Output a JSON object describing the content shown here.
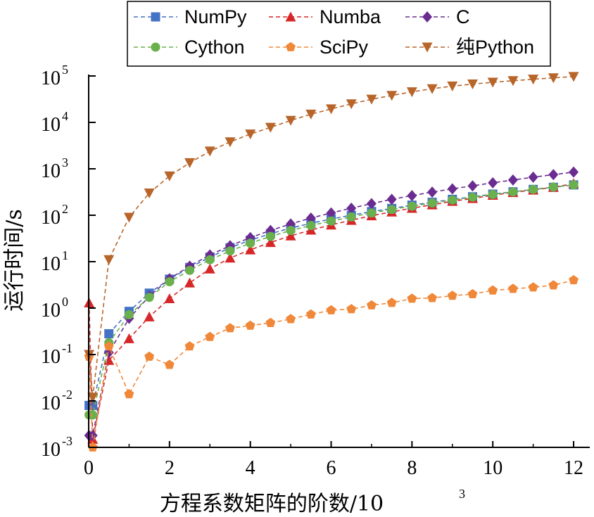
{
  "chart_data": {
    "type": "line",
    "title": "",
    "xlabel": "方程系数矩阵的阶数/10",
    "xlabel_exponent": "3",
    "ylabel": "运行时间/s",
    "xlim": [
      0,
      12.4
    ],
    "ylim_log10": [
      -3,
      5
    ],
    "x_ticks": [
      0,
      2,
      4,
      6,
      8,
      10,
      12
    ],
    "x_tick_labels": [
      "0",
      "2",
      "4",
      "6",
      "8",
      "10",
      "12"
    ],
    "y_ticks_base": "10",
    "y_ticks_exponents": [
      "-3",
      "-2",
      "-1",
      "0",
      "1",
      "2",
      "3",
      "4",
      "5"
    ],
    "legend_position": "top-right",
    "x": [
      0.01,
      0.1,
      0.5,
      1.0,
      1.5,
      2.0,
      2.5,
      3.0,
      3.5,
      4.0,
      4.5,
      5.0,
      5.5,
      6.0,
      6.5,
      7.0,
      7.5,
      8.0,
      8.5,
      9.0,
      9.5,
      10.0,
      10.5,
      11.0,
      11.5,
      12.0
    ],
    "series": [
      {
        "name": "NumPy",
        "color": "#4472c4",
        "marker": "square",
        "values": [
          0.008,
          0.008,
          0.28,
          0.85,
          2.1,
          4.2,
          7.5,
          12.5,
          20,
          29,
          40,
          53,
          67,
          83,
          100,
          120,
          140,
          165,
          190,
          220,
          250,
          285,
          320,
          360,
          400,
          450
        ]
      },
      {
        "name": "Numba",
        "color": "#d62728",
        "marker": "triangle-up",
        "values": [
          1.3,
          0.0015,
          0.075,
          0.22,
          0.65,
          1.6,
          3.5,
          7,
          12,
          18,
          26,
          36,
          48,
          62,
          78,
          98,
          118,
          142,
          168,
          200,
          230,
          270,
          310,
          350,
          400,
          480
        ]
      },
      {
        "name": "C",
        "color": "#6a2c91",
        "marker": "diamond",
        "values": [
          0.0018,
          0.0018,
          0.11,
          0.6,
          1.8,
          4.3,
          8,
          14,
          22,
          33,
          47,
          65,
          87,
          112,
          142,
          178,
          220,
          265,
          315,
          370,
          430,
          500,
          575,
          660,
          750,
          850
        ]
      },
      {
        "name": "Cython",
        "color": "#6ab04c",
        "marker": "circle",
        "values": [
          0.005,
          0.005,
          0.18,
          0.72,
          1.7,
          3.7,
          6.5,
          11,
          17,
          25,
          35,
          47,
          60,
          75,
          92,
          112,
          133,
          157,
          183,
          213,
          245,
          280,
          318,
          360,
          405,
          450
        ]
      },
      {
        "name": "SciPy",
        "color": "#f0883a",
        "marker": "pentagon",
        "values": [
          0.09,
          0.001,
          0.15,
          0.014,
          0.09,
          0.06,
          0.15,
          0.24,
          0.37,
          0.42,
          0.48,
          0.58,
          0.73,
          0.9,
          0.95,
          1.15,
          1.3,
          1.6,
          1.65,
          1.85,
          2.0,
          2.4,
          2.6,
          2.8,
          3.1,
          4.0
        ]
      },
      {
        "name": "纯Python",
        "color": "#b8652a",
        "marker": "triangle-down",
        "values": [
          0.1,
          0.012,
          11,
          90,
          300,
          700,
          1350,
          2400,
          3800,
          5600,
          7800,
          11000,
          15000,
          19500,
          25000,
          31500,
          38000,
          45500,
          53000,
          60500,
          67000,
          73000,
          79000,
          85000,
          91000,
          97000
        ]
      }
    ]
  }
}
